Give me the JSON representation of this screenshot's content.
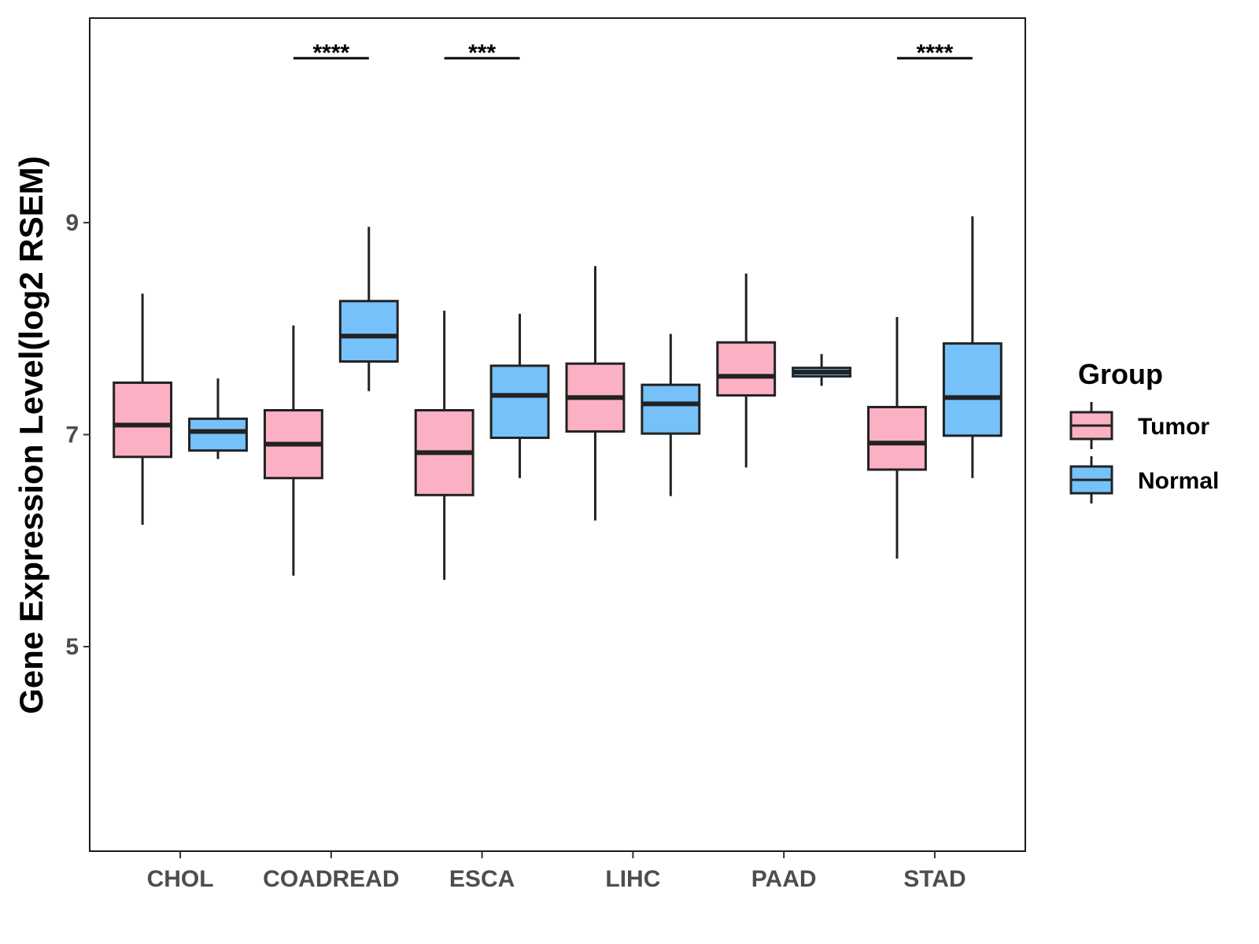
{
  "chart_data": {
    "type": "boxplot",
    "title": "",
    "xlabel": "",
    "ylabel": "Gene Expression Level(log2 RSEM)",
    "ylim": [
      3.07,
      10.93
    ],
    "yticks": [
      5,
      7,
      9
    ],
    "categories": [
      "CHOL",
      "COADREAD",
      "ESCA",
      "LIHC",
      "PAAD",
      "STAD"
    ],
    "legend": {
      "title": "Group",
      "position": "right",
      "entries": [
        {
          "name": "Tumor",
          "color": "#FBB1C3"
        },
        {
          "name": "Normal",
          "color": "#76C1FA"
        }
      ]
    },
    "series": [
      {
        "name": "Tumor",
        "color": "#FBB1C3",
        "boxes": [
          {
            "min": 6.15,
            "q1": 6.79,
            "median": 7.09,
            "q3": 7.49,
            "max": 8.33
          },
          {
            "min": 5.67,
            "q1": 6.59,
            "median": 6.91,
            "q3": 7.23,
            "max": 8.03
          },
          {
            "min": 5.63,
            "q1": 6.43,
            "median": 6.83,
            "q3": 7.23,
            "max": 8.17
          },
          {
            "min": 6.19,
            "q1": 7.03,
            "median": 7.35,
            "q3": 7.67,
            "max": 8.59
          },
          {
            "min": 6.69,
            "q1": 7.37,
            "median": 7.55,
            "q3": 7.87,
            "max": 8.52
          },
          {
            "min": 5.83,
            "q1": 6.67,
            "median": 6.92,
            "q3": 7.26,
            "max": 8.11
          }
        ]
      },
      {
        "name": "Normal",
        "color": "#76C1FA",
        "boxes": [
          {
            "min": 6.77,
            "q1": 6.85,
            "median": 7.03,
            "q3": 7.15,
            "max": 7.53
          },
          {
            "min": 7.41,
            "q1": 7.69,
            "median": 7.93,
            "q3": 8.26,
            "max": 8.96
          },
          {
            "min": 6.59,
            "q1": 6.97,
            "median": 7.37,
            "q3": 7.65,
            "max": 8.14
          },
          {
            "min": 6.42,
            "q1": 7.01,
            "median": 7.29,
            "q3": 7.47,
            "max": 7.95
          },
          {
            "min": 7.46,
            "q1": 7.55,
            "median": 7.59,
            "q3": 7.63,
            "max": 7.76
          },
          {
            "min": 6.59,
            "q1": 6.99,
            "median": 7.35,
            "q3": 7.86,
            "max": 9.06
          }
        ]
      }
    ],
    "annotations": [
      {
        "category": "COADREAD",
        "text": "****"
      },
      {
        "category": "ESCA",
        "text": "***"
      },
      {
        "category": "STAD",
        "text": "****"
      }
    ]
  }
}
